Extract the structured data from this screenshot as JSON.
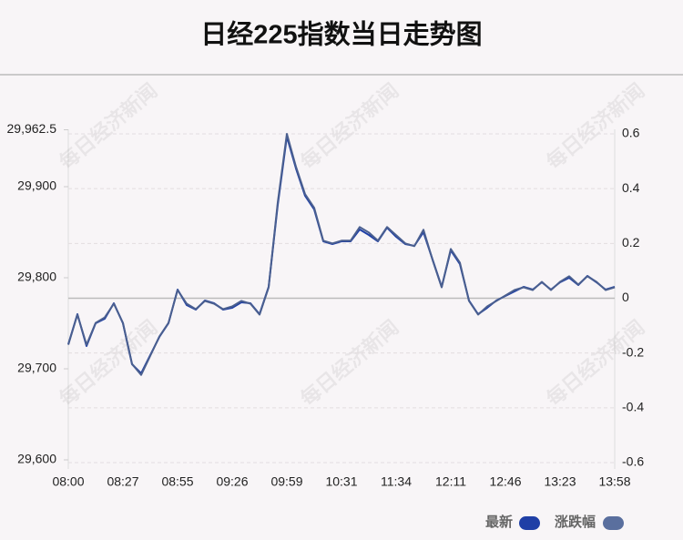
{
  "chart_data": {
    "type": "line",
    "title": "日经225指数当日走势图",
    "watermark": "每日经济新闻",
    "categories": [
      "08:00",
      null,
      null,
      null,
      null,
      null,
      "08:27",
      null,
      null,
      null,
      null,
      null,
      "08:55",
      null,
      null,
      null,
      null,
      null,
      "09:26",
      null,
      null,
      null,
      null,
      null,
      "09:59",
      null,
      null,
      null,
      null,
      null,
      "10:31",
      null,
      null,
      null,
      null,
      null,
      "11:34",
      null,
      null,
      null,
      null,
      null,
      "12:11",
      null,
      null,
      null,
      null,
      null,
      "12:46",
      null,
      null,
      null,
      null,
      null,
      "13:23",
      null,
      null,
      null,
      null,
      null,
      "13:58"
    ],
    "series": [
      {
        "name": "最新",
        "color": "#1f3fa6",
        "values": [
          29727,
          29760,
          29725,
          29750,
          29755,
          29772,
          29750,
          29705,
          29695,
          29715,
          29735,
          29750,
          29787,
          29770,
          29765,
          29775,
          29772,
          29765,
          29767,
          29773,
          29772,
          29760,
          29790,
          29880,
          29955,
          29920,
          29890,
          29875,
          29840,
          29837,
          29840,
          29840,
          29853,
          29847,
          29840,
          29855,
          29845,
          29837,
          29835,
          29850,
          29820,
          29790,
          29830,
          29815,
          29775,
          29760,
          29767,
          29775,
          29780,
          29785,
          29790,
          29787,
          29795,
          29787,
          29795,
          29800,
          29792,
          29802,
          29795,
          29787,
          29790
        ]
      },
      {
        "name": "涨跌幅",
        "color": "#5a6f9e",
        "axis": "y2",
        "values": [
          -0.17,
          -0.06,
          -0.17,
          -0.09,
          -0.07,
          -0.02,
          -0.09,
          -0.24,
          -0.28,
          -0.21,
          -0.14,
          -0.09,
          0.03,
          -0.02,
          -0.04,
          -0.01,
          -0.02,
          -0.04,
          -0.03,
          -0.01,
          -0.02,
          -0.06,
          0.04,
          0.35,
          0.6,
          0.48,
          0.38,
          0.33,
          0.21,
          0.2,
          0.21,
          0.21,
          0.26,
          0.24,
          0.21,
          0.26,
          0.23,
          0.2,
          0.19,
          0.25,
          0.14,
          0.04,
          0.18,
          0.13,
          -0.01,
          -0.06,
          -0.03,
          -0.01,
          0.01,
          0.03,
          0.04,
          0.03,
          0.06,
          0.03,
          0.06,
          0.08,
          0.05,
          0.08,
          0.06,
          0.03,
          0.04
        ]
      }
    ],
    "ylim": [
      29600,
      29962.5
    ],
    "yticks": [
      {
        "value": 29600,
        "label": "29,600"
      },
      {
        "value": 29700,
        "label": "29,700"
      },
      {
        "value": 29800,
        "label": "29,800"
      },
      {
        "value": 29900,
        "label": "29,900"
      },
      {
        "value": 29962.5,
        "label": "29,962.5"
      }
    ],
    "y2lim": [
      -0.6,
      0.6
    ],
    "y2ticks": [
      -0.6,
      -0.4,
      -0.2,
      0,
      0.2,
      0.4,
      0.6
    ],
    "grid": true
  }
}
